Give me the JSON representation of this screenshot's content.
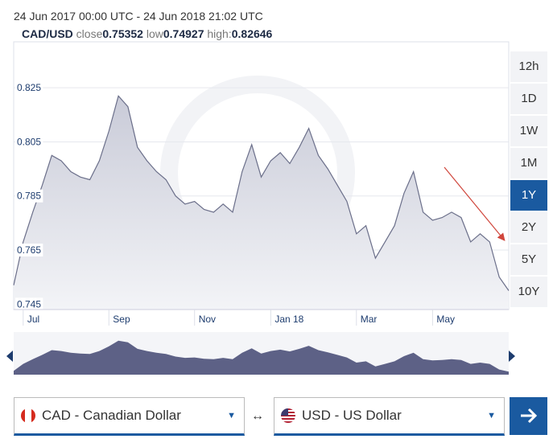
{
  "header": {
    "range": "24 Jun 2017 00:00 UTC - 24 Jun 2018 21:02 UTC",
    "pair": "CAD/USD",
    "close_label": "close",
    "close": "0.75352",
    "low_label": "low",
    "low": "0.74927",
    "high_label": "high:",
    "high": "0.82646"
  },
  "range_buttons": [
    "12h",
    "1D",
    "1W",
    "1M",
    "1Y",
    "2Y",
    "5Y",
    "10Y"
  ],
  "active_range": 4,
  "from_currency": "CAD - Canadian Dollar",
  "to_currency": "USD - US Dollar",
  "chart_data": {
    "type": "area",
    "color": "#6b6f8a",
    "categories": [
      null,
      "Jul",
      null,
      null,
      null,
      null,
      null,
      null,
      null,
      null,
      "Sep",
      null,
      null,
      null,
      null,
      null,
      null,
      null,
      null,
      "Nov",
      null,
      null,
      null,
      null,
      null,
      null,
      null,
      "Jan 18",
      null,
      null,
      null,
      null,
      null,
      null,
      null,
      null,
      "Mar",
      null,
      null,
      null,
      null,
      null,
      null,
      null,
      "May",
      null,
      null,
      null,
      null,
      null,
      null,
      null,
      null
    ],
    "values": [
      0.752,
      0.768,
      0.779,
      0.789,
      0.8,
      0.798,
      0.794,
      0.792,
      0.791,
      0.798,
      0.809,
      0.822,
      0.818,
      0.803,
      0.798,
      0.794,
      0.791,
      0.785,
      0.782,
      0.783,
      0.78,
      0.779,
      0.782,
      0.779,
      0.794,
      0.804,
      0.792,
      0.798,
      0.801,
      0.797,
      0.803,
      0.81,
      0.8,
      0.795,
      0.789,
      0.783,
      0.771,
      0.774,
      0.762,
      0.768,
      0.774,
      0.786,
      0.794,
      0.779,
      0.776,
      0.777,
      0.779,
      0.777,
      0.768,
      0.771,
      0.768,
      0.755,
      0.75
    ],
    "ylim": [
      0.743,
      0.842
    ],
    "yticks": [
      0.745,
      0.765,
      0.785,
      0.805,
      0.825
    ],
    "grid": true
  }
}
